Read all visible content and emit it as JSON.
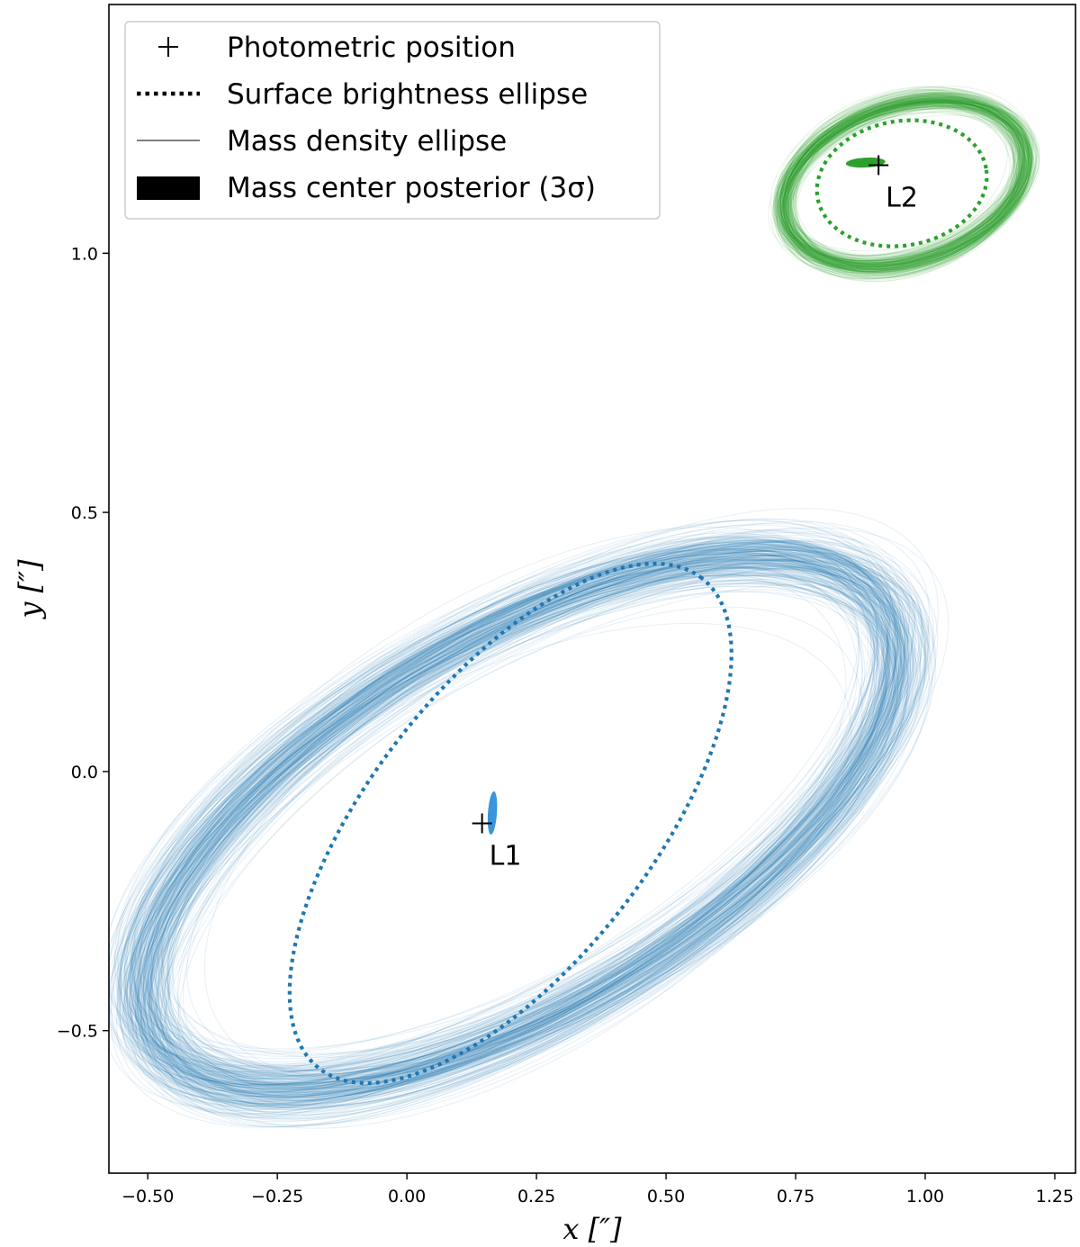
{
  "chart_data": {
    "type": "scatter",
    "xlabel": "x [″]",
    "ylabel": "y [″]",
    "xlim": [
      -0.575,
      1.29
    ],
    "ylim": [
      -0.775,
      1.48
    ],
    "xticks": [
      -0.5,
      -0.25,
      0.0,
      0.25,
      0.5,
      0.75,
      1.0,
      1.25
    ],
    "xtick_labels": [
      "−0.50",
      "−0.25",
      "0.00",
      "0.25",
      "0.50",
      "0.75",
      "1.00",
      "1.25"
    ],
    "yticks": [
      -0.5,
      0.0,
      0.5,
      1.0
    ],
    "ytick_labels": [
      "−0.5",
      "0.0",
      "0.5",
      "1.0"
    ],
    "legend": {
      "position": "upper left",
      "entries": [
        {
          "marker": "plus",
          "label": "Photometric position"
        },
        {
          "marker": "dotted-line",
          "label": "Surface brightness ellipse"
        },
        {
          "marker": "thin-line",
          "label": "Mass density ellipse"
        },
        {
          "marker": "filled-patch",
          "label": "Mass center posterior (3σ)"
        }
      ]
    },
    "lenses": [
      {
        "name": "L1",
        "color": "#1f77b4",
        "posterior_color": "#3a95dc",
        "photometric_position": [
          0.145,
          -0.1
        ],
        "mass_center": [
          0.165,
          -0.08
        ],
        "surface_brightness_ellipse": {
          "center": [
            0.2,
            -0.1
          ],
          "a": 0.6,
          "b": 0.27,
          "angle_deg": 52
        },
        "mass_density_ellipse": {
          "center": [
            0.22,
            -0.1
          ],
          "a": 0.82,
          "b": 0.36,
          "angle_deg": 30
        }
      },
      {
        "name": "L2",
        "color": "#2ca02c",
        "posterior_color": "#2ca02c",
        "photometric_position": [
          0.91,
          1.17
        ],
        "mass_center": [
          0.885,
          1.175
        ],
        "surface_brightness_ellipse": {
          "center": [
            0.955,
            1.135
          ],
          "a": 0.165,
          "b": 0.12,
          "angle_deg": 10
        },
        "mass_density_ellipse": {
          "center": [
            0.96,
            1.135
          ],
          "a": 0.24,
          "b": 0.15,
          "angle_deg": 18
        }
      }
    ]
  }
}
